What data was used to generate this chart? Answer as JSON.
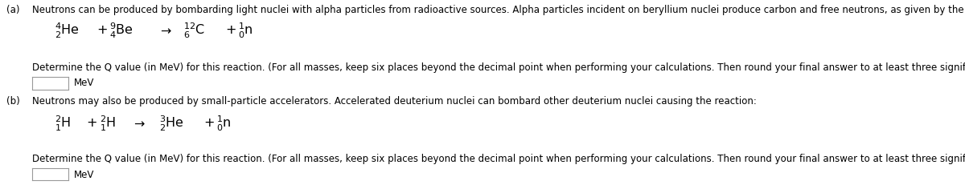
{
  "bg_color": "#ffffff",
  "text_color": "#000000",
  "part_a_label": "(a)",
  "part_a_intro": "Neutrons can be produced by bombarding light nuclei with alpha particles from radioactive sources. Alpha particles incident on beryllium nuclei produce carbon and free neutrons, as given by the reaction:",
  "part_a_determine": "Determine the Q value (in MeV) for this reaction. (For all masses, keep six places beyond the decimal point when performing your calculations. Then round your final answer to at least three significant figures.)",
  "part_a_unit": "MeV",
  "part_b_label": "(b)",
  "part_b_intro": "Neutrons may also be produced by small-particle accelerators. Accelerated deuterium nuclei can bombard other deuterium nuclei causing the reaction:",
  "part_b_determine": "Determine the Q value (in MeV) for this reaction. (For all masses, keep six places beyond the decimal point when performing your calculations. Then round your final answer to at least three significant figures.)",
  "part_b_unit": "MeV",
  "font_size_body": 8.5,
  "font_size_eq": 11.5,
  "font_size_label": 8.5
}
